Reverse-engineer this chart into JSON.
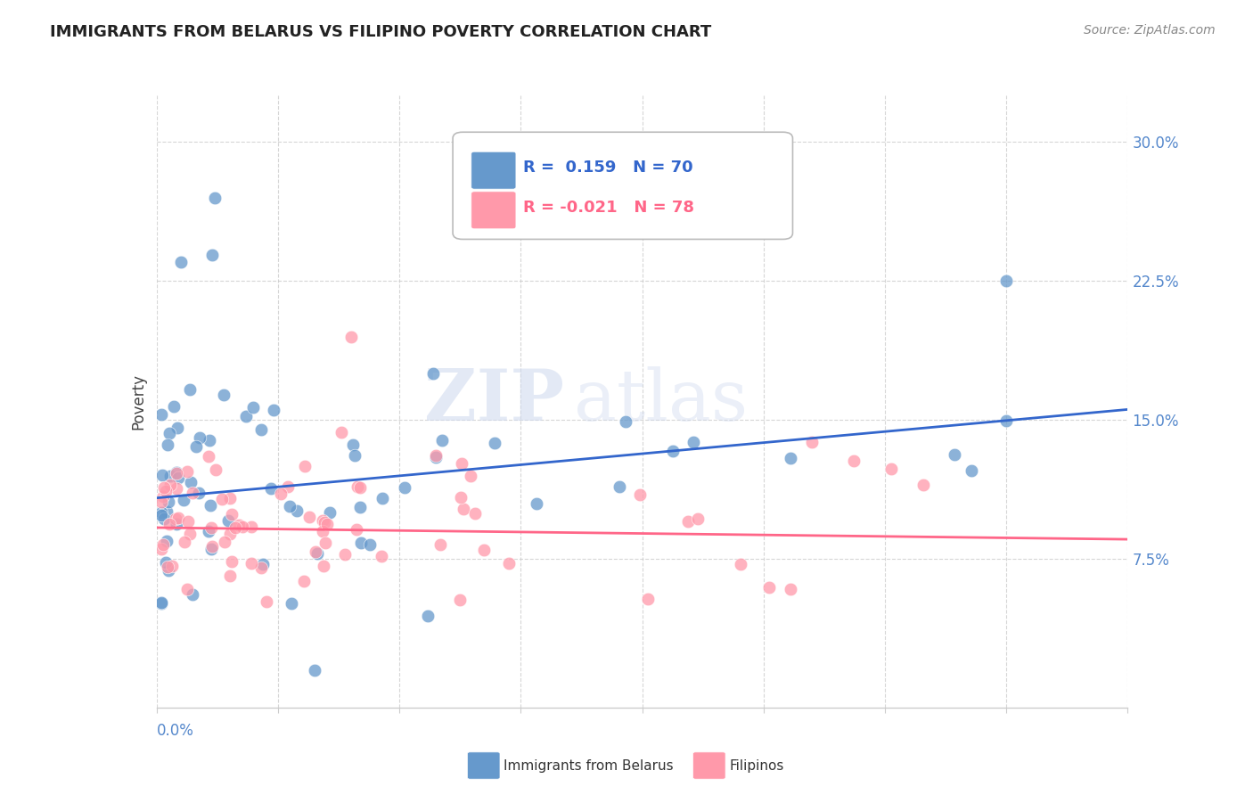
{
  "title": "IMMIGRANTS FROM BELARUS VS FILIPINO POVERTY CORRELATION CHART",
  "source": "Source: ZipAtlas.com",
  "ylabel": "Poverty",
  "yticks": [
    0.075,
    0.15,
    0.225,
    0.3
  ],
  "ytick_labels": [
    "7.5%",
    "15.0%",
    "22.5%",
    "30.0%"
  ],
  "xlim": [
    0.0,
    0.2
  ],
  "ylim": [
    -0.005,
    0.325
  ],
  "blue_color": "#6699CC",
  "pink_color": "#FF99AA",
  "blue_line_color": "#3366CC",
  "pink_line_color": "#FF6688",
  "watermark_zip": "ZIP",
  "watermark_atlas": "atlas",
  "blue_slope": 0.159,
  "pink_slope": -0.021
}
